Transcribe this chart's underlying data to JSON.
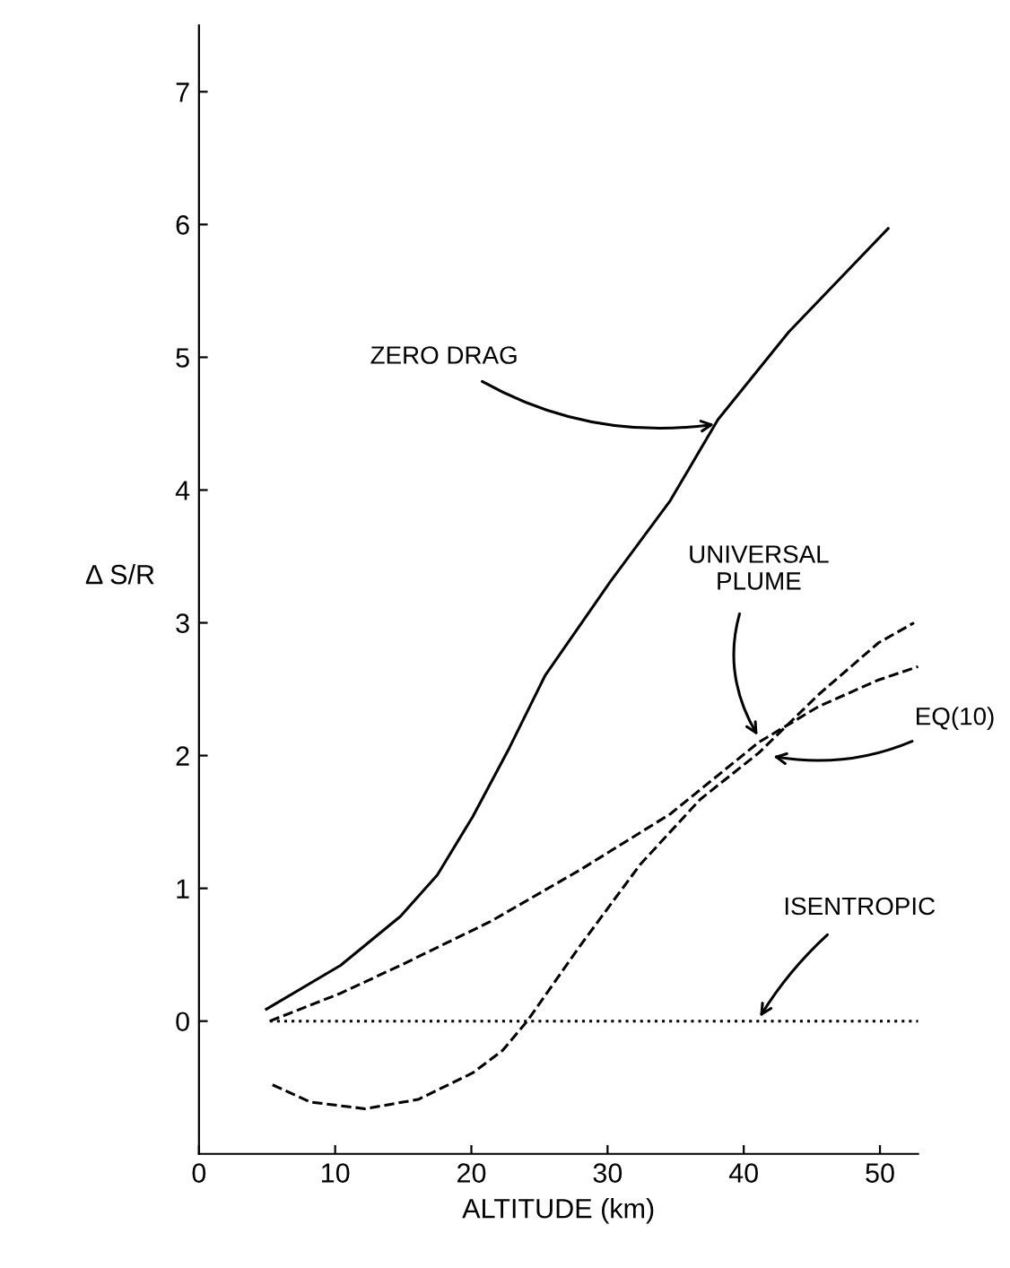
{
  "chart_data": {
    "type": "line",
    "xlabel": "ALTITUDE (km)",
    "ylabel": "Δ S/R",
    "xlim": [
      0,
      52.8
    ],
    "ylim": [
      -1,
      7.5
    ],
    "xticks": [
      0,
      10,
      20,
      30,
      40,
      50
    ],
    "yticks": [
      0,
      1,
      2,
      3,
      4,
      5,
      6,
      7
    ],
    "grid": false,
    "legend": false,
    "series": [
      {
        "color": "#000000",
        "line_style": "solid",
        "x": [
          4.95,
          10.4,
          14.8,
          17.5,
          20.1,
          22.8,
          25.4,
          30.2,
          34.6,
          38.1,
          43.3,
          50.6
        ],
        "values": [
          0.09,
          0.42,
          0.79,
          1.1,
          1.54,
          2.06,
          2.6,
          3.31,
          3.92,
          4.53,
          5.19,
          5.97
        ]
      },
      {
        "color": "#000000",
        "line_style": "dashed",
        "x": [
          5.2,
          10.4,
          14.8,
          21.4,
          28,
          34.6,
          41.1,
          45.5,
          49.9,
          52.8
        ],
        "values": [
          0,
          0.21,
          0.42,
          0.75,
          1.14,
          1.56,
          2.1,
          2.37,
          2.57,
          2.67
        ]
      },
      {
        "color": "#000000",
        "line_style": "dashed",
        "x": [
          5.4,
          8.2,
          12.2,
          16.1,
          20.1,
          22.3,
          24.1,
          28,
          32.4,
          36.8,
          41.1,
          45.5,
          49.9,
          52.5
        ],
        "values": [
          -0.48,
          -0.61,
          -0.66,
          -0.59,
          -0.39,
          -0.22,
          0,
          0.57,
          1.18,
          1.67,
          2.02,
          2.46,
          2.85,
          3.0
        ]
      },
      {
        "color": "#000000",
        "line_style": "dotted",
        "x": [
          5.2,
          52.8
        ],
        "values": [
          0,
          0
        ]
      }
    ],
    "annotations": [
      {
        "text": "ZERO DRAG",
        "x": 38.2,
        "y": 4.5
      },
      {
        "text": "UNIVERSAL\nPLUME",
        "x": 41.2,
        "y": 2.12
      },
      {
        "text": "EQ(10)",
        "x": 41.8,
        "y": 2.0
      },
      {
        "text": "ISENTROPIC",
        "x": 41,
        "y": 0
      }
    ]
  }
}
